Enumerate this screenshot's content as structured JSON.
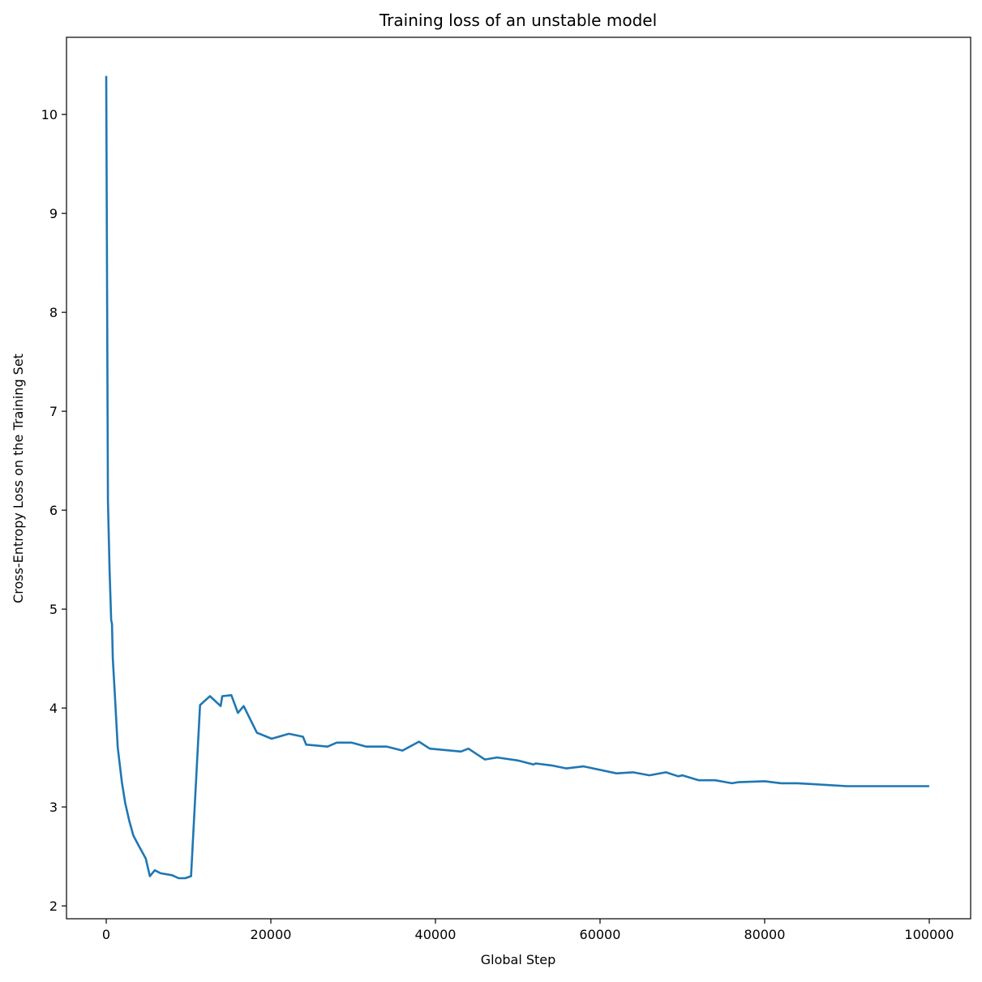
{
  "chart_data": {
    "type": "line",
    "title": "Training loss of an unstable model",
    "xlabel": "Global Step",
    "ylabel": "Cross-Entropy Loss on the Training Set",
    "xlim": [
      -4830,
      105030
    ],
    "ylim": [
      1.87,
      10.78
    ],
    "xticks": [
      0,
      20000,
      40000,
      60000,
      80000,
      100000
    ],
    "yticks": [
      2,
      3,
      4,
      5,
      6,
      7,
      8,
      9,
      10
    ],
    "grid": false,
    "color": "#1f77b4",
    "series": [
      {
        "x": [
          0,
          200,
          400,
          600,
          700,
          800,
          1000,
          1400,
          1900,
          2300,
          2800,
          3300,
          4000,
          4800,
          5300,
          5900,
          6600,
          8000,
          8800,
          9600,
          10300,
          11400,
          12600,
          13900,
          14100,
          15200,
          16000,
          16700,
          18300,
          20100,
          22200,
          23900,
          24300,
          26900,
          28000,
          29800,
          31600,
          34100,
          36000,
          38000,
          39300,
          43100,
          44000,
          46000,
          47500,
          50000,
          51900,
          52200,
          54100,
          55900,
          58000,
          62000,
          64000,
          66000,
          68000,
          69500,
          70000,
          72000,
          74000,
          76000,
          76800,
          80000,
          82000,
          84000,
          86000,
          90000,
          94000,
          96000,
          98000,
          100000
        ],
        "y": [
          10.39,
          6.1,
          5.4,
          4.89,
          4.85,
          4.5,
          4.2,
          3.6,
          3.25,
          3.04,
          2.86,
          2.71,
          2.6,
          2.48,
          2.3,
          2.36,
          2.33,
          2.31,
          2.28,
          2.28,
          2.3,
          4.03,
          4.12,
          4.02,
          4.12,
          4.13,
          3.95,
          4.02,
          3.75,
          3.69,
          3.74,
          3.71,
          3.63,
          3.61,
          3.65,
          3.65,
          3.61,
          3.61,
          3.57,
          3.66,
          3.59,
          3.56,
          3.59,
          3.48,
          3.5,
          3.47,
          3.43,
          3.44,
          3.42,
          3.39,
          3.41,
          3.34,
          3.35,
          3.32,
          3.35,
          3.31,
          3.32,
          3.27,
          3.27,
          3.24,
          3.25,
          3.26,
          3.24,
          3.24,
          3.23,
          3.21,
          3.21,
          3.21,
          3.21,
          3.21
        ]
      }
    ]
  }
}
